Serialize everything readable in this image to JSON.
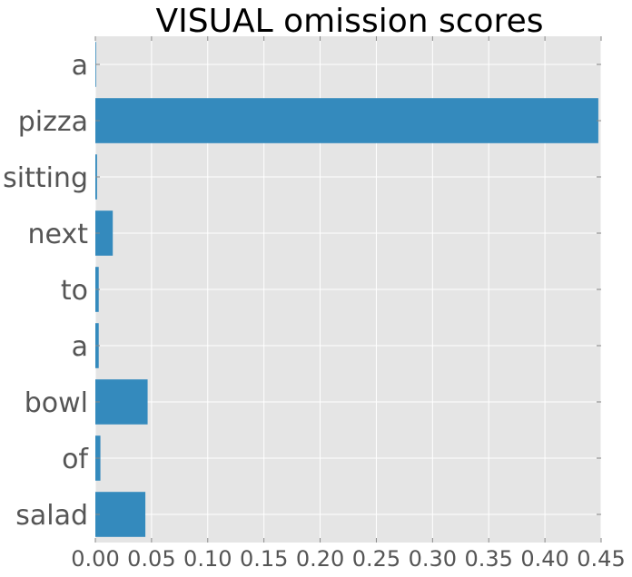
{
  "chart_data": {
    "type": "bar",
    "orientation": "horizontal",
    "title": "VISUAL omission scores",
    "xlabel": "",
    "ylabel": "",
    "categories": [
      "a",
      "pizza",
      "sitting",
      "next",
      "to",
      "a",
      "bowl",
      "of",
      "salad"
    ],
    "values": [
      0.0005,
      0.4475,
      0.0015,
      0.0155,
      0.003,
      0.003,
      0.0465,
      0.0045,
      0.0445
    ],
    "xlim": [
      0,
      0.45
    ],
    "xticks": [
      0.0,
      0.05,
      0.1,
      0.15,
      0.2,
      0.25,
      0.3,
      0.35,
      0.4,
      0.45
    ],
    "xtick_labels": [
      "0.00",
      "0.05",
      "0.10",
      "0.15",
      "0.20",
      "0.25",
      "0.30",
      "0.35",
      "0.40",
      "0.45"
    ],
    "grid": true,
    "legend": "none",
    "colors": {
      "bar": "#348abd",
      "plot_background": "#e5e5e5",
      "grid": "#ffffff",
      "tick_label": "#555555"
    }
  }
}
